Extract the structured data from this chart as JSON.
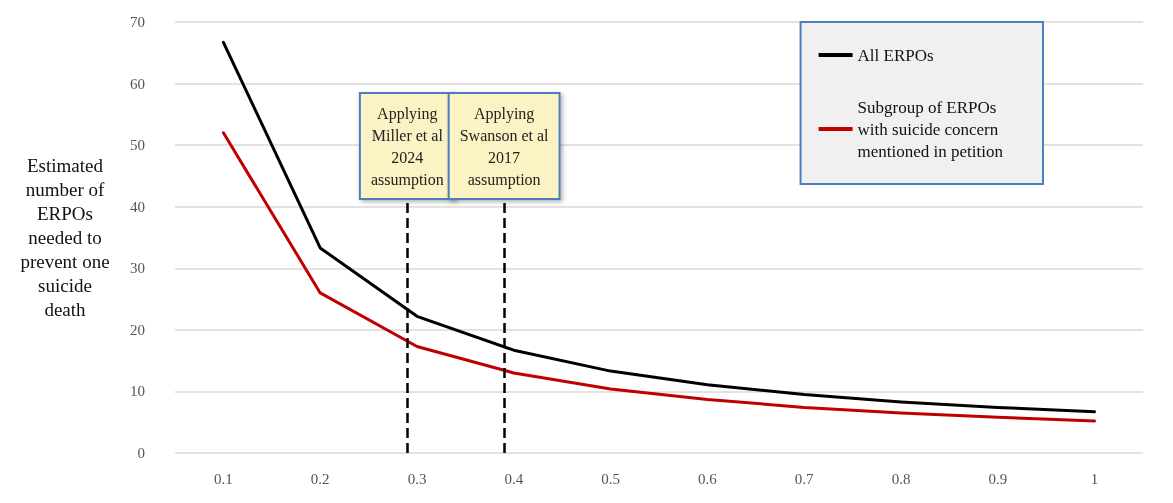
{
  "chart_data": {
    "type": "line",
    "ylabel": "Estimated\nnumber of\nERPOs\nneeded to\nprevent one\nsuicide\ndeath",
    "x": [
      0.1,
      0.2,
      0.3,
      0.4,
      0.5,
      0.6,
      0.7,
      0.8,
      0.9,
      1
    ],
    "series": [
      {
        "name": "All ERPOs",
        "color": "#000000",
        "values": [
          66.7,
          33.3,
          22.2,
          16.7,
          13.3,
          11.1,
          9.5,
          8.3,
          7.4,
          6.7
        ]
      },
      {
        "name": "Subgroup of ERPOs\nwith suicide concern\nmentioned in petition",
        "color": "#c00000",
        "values": [
          52,
          26,
          17.3,
          13,
          10.4,
          8.7,
          7.4,
          6.5,
          5.8,
          5.2
        ]
      }
    ],
    "xlim": [
      0.05,
      1.05
    ],
    "xticks": [
      0.1,
      0.2,
      0.3,
      0.4,
      0.5,
      0.6,
      0.7,
      0.8,
      0.9,
      1
    ],
    "ylim": [
      0,
      70
    ],
    "yticks": [
      0,
      10,
      20,
      30,
      40,
      50,
      60,
      70
    ],
    "ref_lines": [
      {
        "axis": "x",
        "value": 0.29,
        "label": "Applying\nMiller et al\n2024\nassumption",
        "color": "#000000",
        "line_style": "dashed"
      },
      {
        "axis": "x",
        "value": 0.39,
        "label": "Applying\nSwanson et al\n2017\nassumption",
        "color": "#000000",
        "line_style": "dashed"
      }
    ],
    "grid": "y",
    "legend": "top right",
    "marker": "none",
    "line_style": "solid"
  }
}
